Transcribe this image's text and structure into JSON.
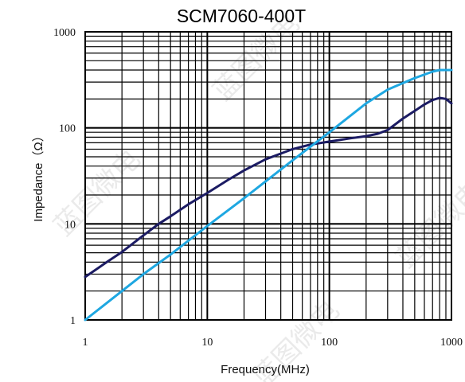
{
  "chart_data": {
    "type": "line",
    "title": "SCM7060-400T",
    "xlabel": "Frequency(MHz)",
    "ylabel": "Impedance（Ω）",
    "x_scale": "log",
    "y_scale": "log",
    "xlim": [
      1,
      1000
    ],
    "ylim": [
      1,
      1000
    ],
    "grid": true,
    "x_ticks": [
      1,
      10,
      100,
      1000
    ],
    "x_tick_labels": [
      "1",
      "10",
      "100",
      "1000"
    ],
    "y_ticks": [
      1,
      10,
      100,
      1000
    ],
    "y_tick_labels": [
      "1",
      "10",
      "100",
      "1000"
    ],
    "series": [
      {
        "color": "#1b1b63",
        "x": [
          1,
          1.5,
          2,
          3,
          4,
          5,
          7,
          10,
          15,
          20,
          30,
          40,
          50,
          70,
          100,
          150,
          200,
          250,
          300,
          400,
          500,
          600,
          700,
          800,
          900,
          1000
        ],
        "y": [
          2.8,
          4.0,
          5.1,
          7.6,
          10,
          12,
          16,
          21,
          29,
          36,
          47,
          54,
          60,
          67,
          72,
          78,
          82,
          87,
          95,
          125,
          150,
          175,
          195,
          205,
          200,
          180
        ]
      },
      {
        "color": "#1ea7e1",
        "x": [
          1,
          2,
          3,
          5,
          10,
          20,
          50,
          100,
          200,
          300,
          500,
          700,
          800,
          900,
          1000
        ],
        "y": [
          1.0,
          2.0,
          3.0,
          4.8,
          9.5,
          18.5,
          46,
          90,
          180,
          250,
          330,
          385,
          400,
          400,
          400
        ]
      }
    ]
  },
  "watermark": "蓝图微电"
}
